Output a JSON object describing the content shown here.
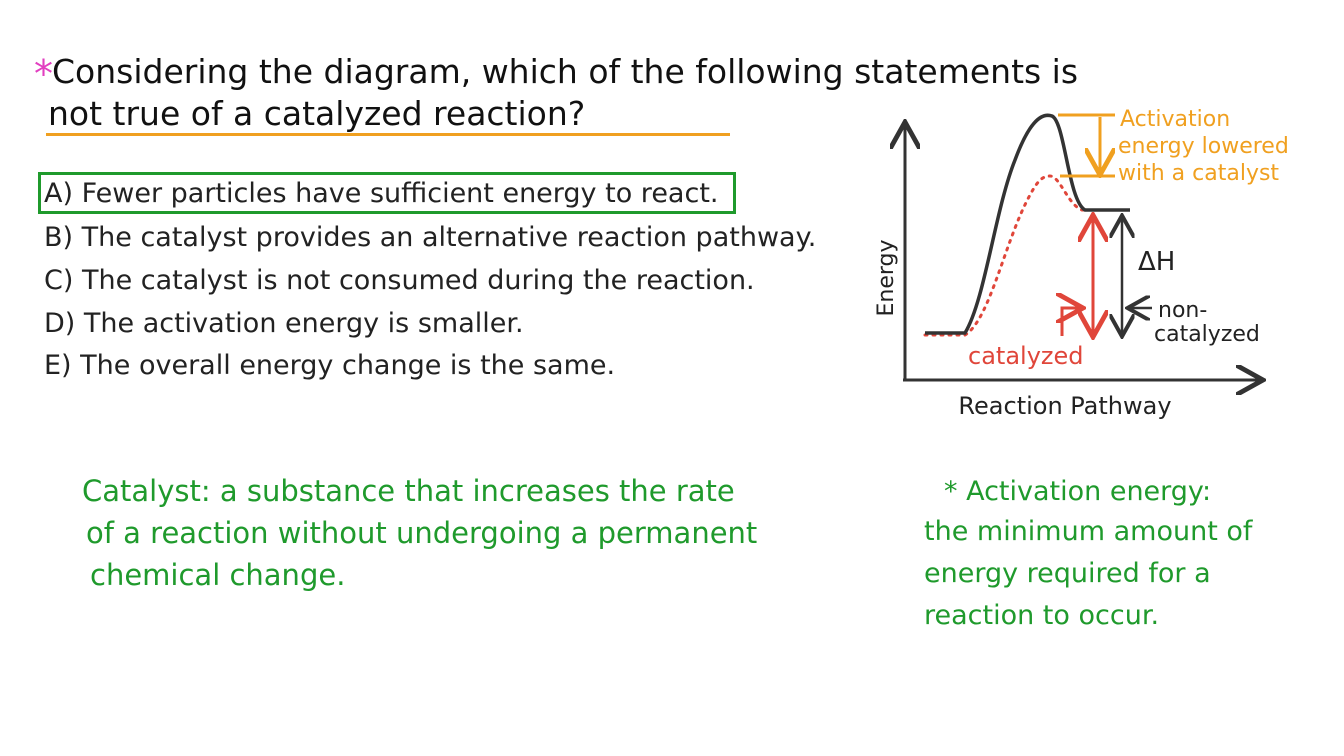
{
  "question": {
    "marker": "*",
    "lines": [
      "Considering the diagram, which of the following statements is",
      "not true of a catalyzed reaction?"
    ]
  },
  "options": [
    "A) Fewer particles have sufficient energy to react.",
    "B) The catalyst provides an alternative reaction pathway.",
    "C) The catalyst is not consumed during the reaction.",
    "D) The activation energy is smaller.",
    "E) The overall energy change is the same."
  ],
  "diagram": {
    "y_label": "Energy",
    "x_label": "Reaction Pathway",
    "annotation": [
      "Activation",
      "energy lowered",
      "with a catalyst"
    ],
    "delta_h": "ΔH",
    "non_catalyzed": [
      "non-",
      "catalyzed"
    ],
    "catalyzed": "catalyzed"
  },
  "definitions": {
    "catalyst": [
      "Catalyst: a substance that increases the rate",
      "of a reaction without undergoing a permanent",
      "chemical change."
    ],
    "activation_energy": [
      "* Activation energy:",
      "the minimum amount of",
      "energy required for a",
      "reaction to occur."
    ]
  }
}
